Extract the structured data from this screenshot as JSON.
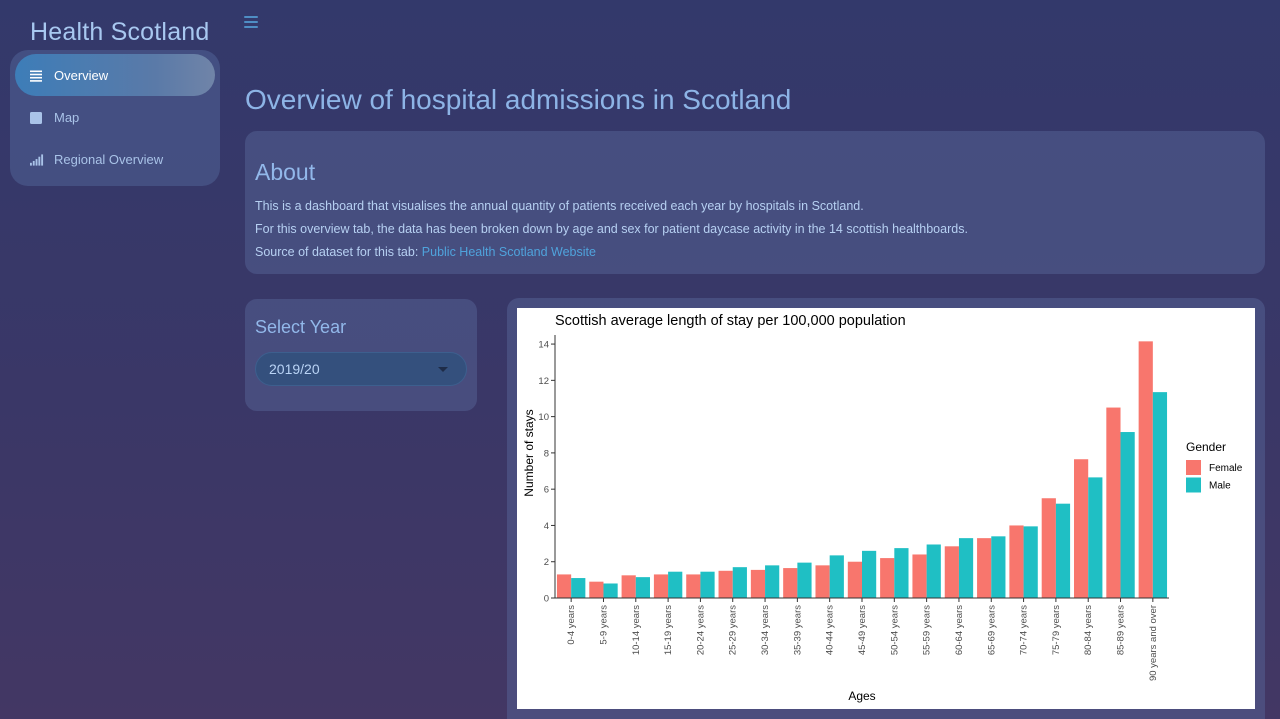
{
  "brand": {
    "title": "Health Scotland"
  },
  "sidebar": {
    "items": [
      {
        "label": "Overview",
        "icon": "list-icon",
        "active": true
      },
      {
        "label": "Map",
        "icon": "square-icon",
        "active": false
      },
      {
        "label": "Regional Overview",
        "icon": "signal-bars-icon",
        "active": false
      }
    ]
  },
  "main": {
    "title": "Overview of hospital admissions in Scotland",
    "about": {
      "heading": "About",
      "line1": "This is a dashboard that visualises the annual quantity of patients received each year by hospitals in Scotland.",
      "line2": "For this overview tab, the data has been broken down by age and sex for patient daycase activity in the 14 scottish healthboards.",
      "source_prefix": "Source of dataset for this tab:",
      "source_link": "Public Health Scotland Website"
    },
    "select_year": {
      "label": "Select Year",
      "value": "2019/20"
    }
  },
  "colors": {
    "female": "#f8766d",
    "male": "#1fbfc4",
    "link": "#4fa3dc"
  },
  "chart_data": {
    "type": "bar",
    "title": "Scottish average length of stay per 100,000 population",
    "xlabel": "Ages",
    "ylabel": "Number of stays",
    "ylim": [
      0,
      14.5
    ],
    "yticks": [
      0,
      2,
      4,
      6,
      8,
      10,
      12,
      14
    ],
    "legend_title": "Gender",
    "legend_position": "right",
    "grid": false,
    "categories": [
      "0-4 years",
      "5-9 years",
      "10-14 years",
      "15-19 years",
      "20-24 years",
      "25-29 years",
      "30-34 years",
      "35-39 years",
      "40-44 years",
      "45-49 years",
      "50-54 years",
      "55-59 years",
      "60-64 years",
      "65-69 years",
      "70-74 years",
      "75-79 years",
      "80-84 years",
      "85-89 years",
      "90 years and over"
    ],
    "series": [
      {
        "name": "Female",
        "values": [
          1.3,
          0.9,
          1.25,
          1.3,
          1.3,
          1.5,
          1.55,
          1.65,
          1.8,
          2.0,
          2.2,
          2.4,
          2.85,
          3.3,
          4.0,
          5.5,
          7.65,
          10.5,
          14.15
        ]
      },
      {
        "name": "Male",
        "values": [
          1.1,
          0.8,
          1.15,
          1.45,
          1.45,
          1.7,
          1.8,
          1.95,
          2.35,
          2.6,
          2.75,
          2.95,
          3.3,
          3.4,
          3.95,
          5.2,
          6.65,
          9.15,
          11.35
        ]
      }
    ]
  }
}
